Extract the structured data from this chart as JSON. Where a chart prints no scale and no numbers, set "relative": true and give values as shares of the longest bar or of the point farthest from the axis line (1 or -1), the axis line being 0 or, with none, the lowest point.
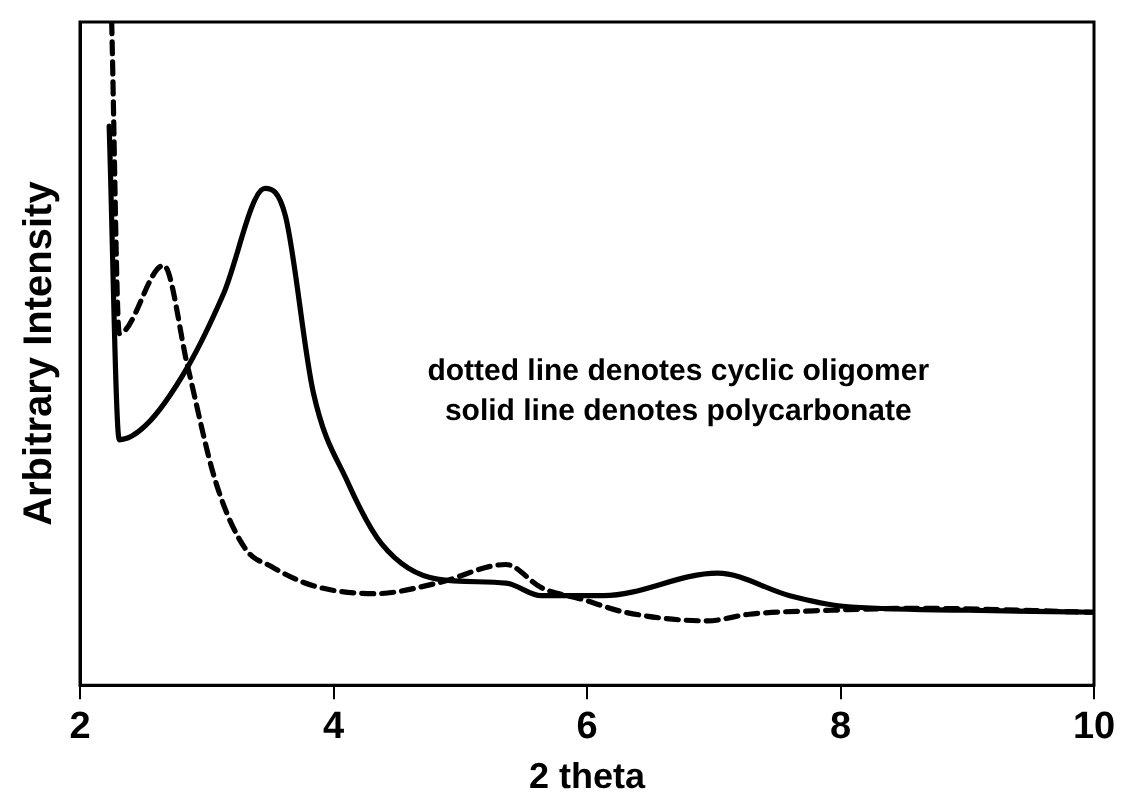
{
  "chart_data": {
    "type": "line",
    "xlabel": "2 theta",
    "ylabel": "Arbitrary Intensity",
    "relative": true,
    "grid": false,
    "legend": false,
    "marker": "none",
    "xlim": [
      2,
      10
    ],
    "xticks": [
      2,
      4,
      6,
      8,
      10
    ],
    "annotations": [
      "dotted line denotes cyclic oligomer",
      "solid line denotes polycarbonate"
    ],
    "series": [
      {
        "color": "#000000",
        "line_style": "dashed",
        "x": [
          2.25,
          2.31,
          2.66,
          2.85,
          3.07,
          3.3,
          3.51,
          3.84,
          4.33,
          4.82,
          5.36,
          5.64,
          5.97,
          6.3,
          6.95,
          7.28,
          7.93,
          8.59,
          10
        ],
        "values": [
          1.0,
          0.53,
          0.633,
          0.48,
          0.307,
          0.207,
          0.179,
          0.15,
          0.138,
          0.154,
          0.182,
          0.147,
          0.129,
          0.11,
          0.097,
          0.107,
          0.113,
          0.116,
          0.11
        ]
      },
      {
        "color": "#000000",
        "line_style": "solid",
        "x": [
          2.23,
          2.31,
          2.52,
          2.85,
          3.13,
          3.46,
          3.62,
          3.84,
          4.11,
          4.38,
          4.82,
          5.36,
          5.64,
          6.13,
          7.03,
          7.6,
          8.02,
          9,
          10
        ],
        "values": [
          0.843,
          0.37,
          0.392,
          0.48,
          0.589,
          0.749,
          0.708,
          0.442,
          0.307,
          0.213,
          0.16,
          0.154,
          0.135,
          0.135,
          0.169,
          0.135,
          0.119,
          0.113,
          0.11
        ]
      }
    ]
  }
}
